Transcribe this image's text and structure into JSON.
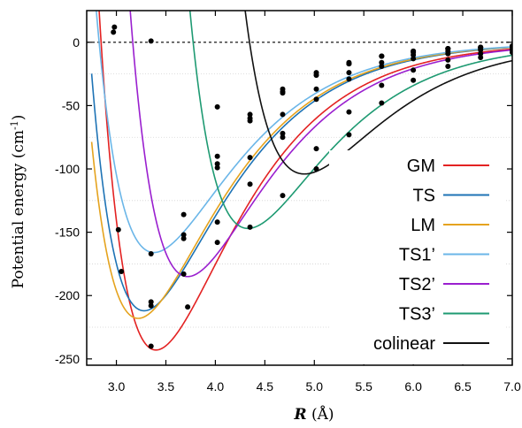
{
  "chart_data": {
    "type": "line",
    "xlabel": "R (Å)",
    "xlabel_symbol": "R",
    "xlabel_unit": " (Å)",
    "ylabel": "Potential energy (cm-1)",
    "ylabel_main": "Potential energy (cm",
    "ylabel_sup": "-1",
    "ylabel_end": ")",
    "xlim": [
      2.7,
      7.0
    ],
    "ylim": [
      -255,
      25
    ],
    "x_ticks": [
      3.0,
      3.5,
      4.0,
      4.5,
      5.0,
      5.5,
      6.0,
      6.5,
      7.0
    ],
    "x_tick_labels": [
      "3.0",
      "3.5",
      "4.0",
      "4.5",
      "5.0",
      "5.5",
      "6.0",
      "6.5",
      "7.0"
    ],
    "y_ticks": [
      0,
      -50,
      -100,
      -150,
      -200,
      -250
    ],
    "y_tick_labels": [
      "0",
      "-50",
      "-100",
      "-150",
      "-200",
      "-250"
    ],
    "zero_line": "dashed",
    "grid": "faint horizontal lines at -25, -75, -125, -175, -225",
    "legend_position": "right",
    "series": [
      {
        "name": "GM",
        "color": "#e32222",
        "De": 243,
        "Re": 3.4,
        "points": [
          [
            2.98,
            12
          ],
          [
            3.02,
            -148
          ],
          [
            3.05,
            -181
          ],
          [
            3.35,
            -240
          ],
          [
            3.72,
            -209
          ],
          [
            4.02,
            -142
          ],
          [
            4.35,
            -91
          ],
          [
            4.68,
            -57
          ],
          [
            5.02,
            -37
          ],
          [
            5.35,
            -24
          ],
          [
            5.68,
            -16
          ],
          [
            6.0,
            -10
          ],
          [
            6.35,
            -7
          ],
          [
            6.68,
            -5
          ],
          [
            7.0,
            -4
          ]
        ]
      },
      {
        "name": "TS",
        "color": "#1e73b5",
        "De": 212,
        "Re": 3.28,
        "points": [
          [
            2.97,
            8
          ],
          [
            3.35,
            -208
          ],
          [
            3.68,
            -155
          ],
          [
            4.02,
            -99
          ],
          [
            4.35,
            -62
          ],
          [
            4.68,
            -40
          ],
          [
            5.02,
            -26
          ],
          [
            5.35,
            -17
          ],
          [
            5.68,
            -11
          ],
          [
            6.0,
            -7
          ],
          [
            6.35,
            -5
          ],
          [
            6.68,
            -4
          ],
          [
            7.0,
            -3
          ]
        ]
      },
      {
        "name": "LM",
        "color": "#e5a31e",
        "De": 218,
        "Re": 3.22,
        "points": [
          [
            3.35,
            -205
          ],
          [
            3.68,
            -152
          ],
          [
            4.02,
            -96
          ],
          [
            4.35,
            -60
          ],
          [
            4.68,
            -39
          ],
          [
            5.02,
            -26
          ],
          [
            5.35,
            -17
          ],
          [
            5.68,
            -11
          ],
          [
            6.0,
            -8
          ],
          [
            6.35,
            -5
          ],
          [
            6.68,
            -4
          ],
          [
            7.0,
            -3
          ]
        ]
      },
      {
        "name": "TS1’",
        "color": "#6bb6e8",
        "De": 166,
        "Re": 3.38,
        "points": [
          [
            3.35,
            -167
          ],
          [
            3.68,
            -136
          ],
          [
            4.02,
            -90
          ],
          [
            4.35,
            -57
          ],
          [
            4.68,
            -37
          ],
          [
            5.02,
            -24
          ],
          [
            5.35,
            -16
          ],
          [
            5.68,
            -11
          ],
          [
            6.0,
            -7
          ],
          [
            6.35,
            -5
          ],
          [
            6.68,
            -4
          ],
          [
            7.0,
            -3
          ]
        ]
      },
      {
        "name": "TS2’",
        "color": "#9a1fcf",
        "De": 185,
        "Re": 3.72,
        "points": [
          [
            3.35,
            1
          ],
          [
            3.68,
            -183
          ],
          [
            4.02,
            -158
          ],
          [
            4.35,
            -112
          ],
          [
            4.68,
            -75
          ],
          [
            5.02,
            -45
          ],
          [
            5.35,
            -29
          ],
          [
            5.68,
            -19
          ],
          [
            6.0,
            -13
          ],
          [
            6.35,
            -9
          ],
          [
            6.68,
            -6
          ],
          [
            7.0,
            -4
          ]
        ]
      },
      {
        "name": "TS3’",
        "color": "#1e9a72",
        "De": 147,
        "Re": 4.33,
        "points": [
          [
            4.02,
            -51
          ],
          [
            4.35,
            -146
          ],
          [
            4.68,
            -121
          ],
          [
            5.02,
            -84
          ],
          [
            5.35,
            -55
          ],
          [
            5.68,
            -34
          ],
          [
            6.0,
            -22
          ],
          [
            6.35,
            -14
          ],
          [
            6.68,
            -9
          ],
          [
            7.0,
            -6
          ]
        ]
      },
      {
        "name": "colinear",
        "color": "#111111",
        "De": 104,
        "Re": 4.9,
        "points": [
          [
            4.68,
            -72
          ],
          [
            5.02,
            -100
          ],
          [
            5.35,
            -73
          ],
          [
            5.68,
            -48
          ],
          [
            6.0,
            -30
          ],
          [
            6.35,
            -19
          ],
          [
            6.68,
            -12
          ],
          [
            7.0,
            -8
          ]
        ]
      }
    ]
  }
}
